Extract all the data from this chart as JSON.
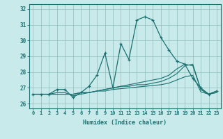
{
  "title": "",
  "xlabel": "Humidex (Indice chaleur)",
  "bg_color": "#c8eaea",
  "grid_color": "#8fbcbc",
  "line_color": "#1a7070",
  "xlim": [
    -0.5,
    23.5
  ],
  "ylim": [
    25.7,
    32.3
  ],
  "yticks": [
    26,
    27,
    28,
    29,
    30,
    31,
    32
  ],
  "xticks": [
    0,
    1,
    2,
    3,
    4,
    5,
    6,
    7,
    8,
    9,
    10,
    11,
    12,
    13,
    14,
    15,
    16,
    17,
    18,
    19,
    20,
    21,
    22,
    23
  ],
  "line1_x": [
    0,
    1,
    2,
    3,
    4,
    5,
    6,
    7,
    8,
    9,
    10,
    11,
    12,
    13,
    14,
    15,
    16,
    17,
    18,
    19,
    20,
    21,
    22,
    23
  ],
  "line1_y": [
    26.6,
    26.6,
    26.6,
    26.9,
    26.9,
    26.4,
    26.7,
    27.1,
    27.8,
    29.2,
    27.0,
    29.8,
    28.8,
    31.3,
    31.5,
    31.3,
    30.2,
    29.4,
    28.7,
    28.5,
    27.6,
    27.0,
    26.6,
    26.8
  ],
  "line2_x": [
    0,
    1,
    2,
    3,
    4,
    5,
    6,
    7,
    8,
    9,
    10,
    11,
    12,
    13,
    14,
    15,
    16,
    17,
    18,
    19,
    20,
    21,
    22,
    23
  ],
  "line2_y": [
    26.6,
    26.6,
    26.6,
    26.7,
    26.7,
    26.5,
    26.6,
    26.7,
    26.8,
    26.9,
    27.0,
    27.1,
    27.2,
    27.3,
    27.4,
    27.5,
    27.6,
    27.8,
    28.2,
    28.5,
    28.4,
    26.9,
    26.6,
    26.8
  ],
  "line3_x": [
    0,
    1,
    2,
    3,
    4,
    5,
    6,
    7,
    8,
    9,
    10,
    11,
    12,
    13,
    14,
    15,
    16,
    17,
    18,
    19,
    20,
    21,
    22,
    23
  ],
  "line3_y": [
    26.6,
    26.6,
    26.6,
    26.6,
    26.6,
    26.6,
    26.7,
    26.7,
    26.8,
    26.9,
    27.0,
    27.1,
    27.1,
    27.2,
    27.2,
    27.3,
    27.4,
    27.6,
    27.9,
    28.4,
    28.5,
    26.9,
    26.6,
    26.8
  ],
  "line4_x": [
    0,
    1,
    2,
    3,
    4,
    5,
    6,
    7,
    8,
    9,
    10,
    11,
    12,
    13,
    14,
    15,
    16,
    17,
    18,
    19,
    20,
    21,
    22,
    23
  ],
  "line4_y": [
    26.6,
    26.6,
    26.6,
    26.6,
    26.6,
    26.6,
    26.7,
    26.7,
    26.8,
    26.8,
    26.9,
    26.95,
    27.0,
    27.05,
    27.1,
    27.15,
    27.2,
    27.3,
    27.5,
    27.7,
    27.8,
    26.75,
    26.6,
    26.7
  ]
}
